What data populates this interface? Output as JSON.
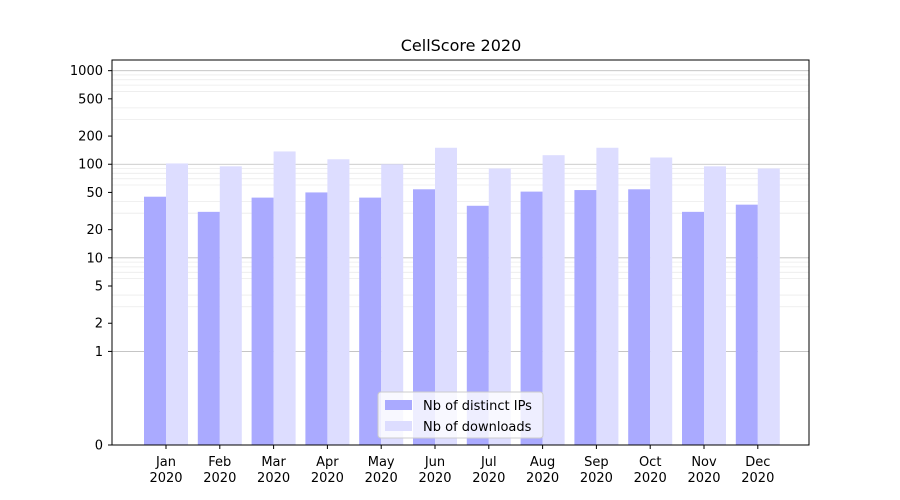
{
  "chart_data": {
    "type": "bar",
    "title": "CellScore 2020",
    "xlabel": "",
    "ylabel": "",
    "yscale": "symlog",
    "ylim": [
      0,
      1300
    ],
    "yticks": [
      0,
      1,
      2,
      5,
      10,
      20,
      50,
      100,
      200,
      500,
      1000
    ],
    "grid": true,
    "legend_position": "lower-center",
    "categories": [
      "Jan\n2020",
      "Feb\n2020",
      "Mar\n2020",
      "Apr\n2020",
      "May\n2020",
      "Jun\n2020",
      "Jul\n2020",
      "Aug\n2020",
      "Sep\n2020",
      "Oct\n2020",
      "Nov\n2020",
      "Dec\n2020"
    ],
    "series": [
      {
        "name": "Nb of distinct IPs",
        "color": "#aaaaff",
        "values": [
          45,
          31,
          44,
          50,
          44,
          54,
          36,
          51,
          53,
          54,
          31,
          37
        ]
      },
      {
        "name": "Nb of downloads",
        "color": "#ddddff",
        "values": [
          102,
          95,
          137,
          113,
          100,
          150,
          90,
          125,
          150,
          118,
          95,
          90
        ]
      }
    ]
  }
}
